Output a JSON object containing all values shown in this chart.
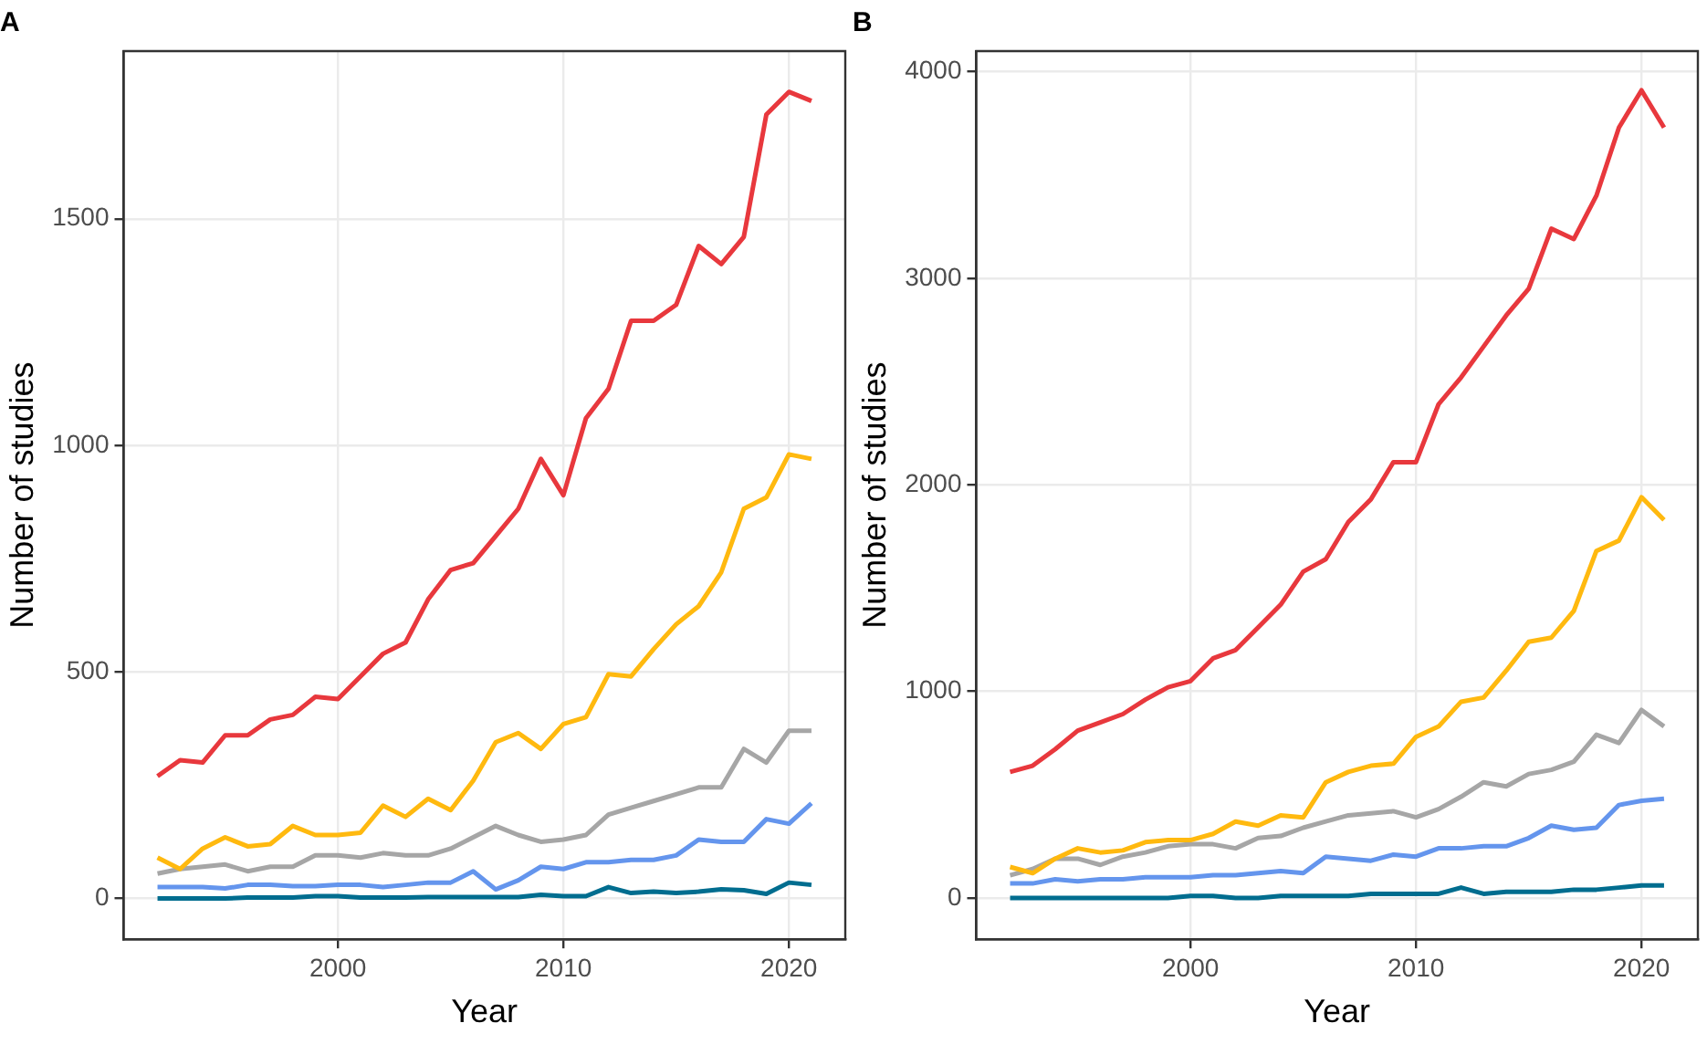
{
  "chart_data": [
    {
      "type": "line",
      "title": "A",
      "xlabel": "Year",
      "ylabel": "Number of studies",
      "x": [
        1992,
        1993,
        1994,
        1995,
        1996,
        1997,
        1998,
        1999,
        2000,
        2001,
        2002,
        2003,
        2004,
        2005,
        2006,
        2007,
        2008,
        2009,
        2010,
        2011,
        2012,
        2013,
        2014,
        2015,
        2016,
        2017,
        2018,
        2019,
        2020,
        2021
      ],
      "xlim": [
        1990.5,
        2022.5
      ],
      "xticks": [
        2000,
        2010,
        2020
      ],
      "ylim": [
        -90,
        1870
      ],
      "yticks": [
        0,
        500,
        1000,
        1500
      ],
      "grid": true,
      "legend": false,
      "marker": "none",
      "line_style": "solid",
      "series": [
        {
          "color": "#e8383d",
          "values": [
            270,
            305,
            300,
            360,
            360,
            395,
            405,
            445,
            440,
            490,
            540,
            565,
            660,
            725,
            740,
            800,
            860,
            970,
            890,
            1060,
            1125,
            1275,
            1275,
            1310,
            1440,
            1400,
            1460,
            1730,
            1780,
            1760
          ]
        },
        {
          "color": "#ffb90f",
          "values": [
            90,
            65,
            110,
            135,
            115,
            120,
            160,
            140,
            140,
            145,
            205,
            180,
            220,
            195,
            260,
            345,
            365,
            330,
            385,
            400,
            495,
            490,
            550,
            605,
            645,
            720,
            860,
            885,
            980,
            970
          ]
        },
        {
          "color": "#a6a6a6",
          "values": [
            55,
            65,
            70,
            75,
            60,
            70,
            70,
            95,
            95,
            90,
            100,
            95,
            95,
            110,
            135,
            160,
            140,
            125,
            130,
            140,
            185,
            200,
            215,
            230,
            245,
            245,
            330,
            300,
            370,
            370
          ]
        },
        {
          "color": "#6495ed",
          "values": [
            25,
            25,
            25,
            22,
            30,
            30,
            27,
            27,
            30,
            30,
            25,
            30,
            35,
            35,
            60,
            20,
            40,
            70,
            65,
            80,
            80,
            85,
            85,
            95,
            130,
            125,
            125,
            175,
            165,
            210
          ]
        },
        {
          "color": "#006d8f",
          "values": [
            0,
            0,
            0,
            0,
            2,
            2,
            2,
            5,
            5,
            2,
            2,
            2,
            3,
            3,
            3,
            3,
            3,
            8,
            5,
            5,
            25,
            12,
            15,
            12,
            15,
            20,
            18,
            10,
            35,
            30
          ]
        }
      ]
    },
    {
      "type": "line",
      "title": "B",
      "xlabel": "Year",
      "ylabel": "Number of studies",
      "x": [
        1992,
        1993,
        1994,
        1995,
        1996,
        1997,
        1998,
        1999,
        2000,
        2001,
        2002,
        2003,
        2004,
        2005,
        2006,
        2007,
        2008,
        2009,
        2010,
        2011,
        2012,
        2013,
        2014,
        2015,
        2016,
        2017,
        2018,
        2019,
        2020,
        2021
      ],
      "xlim": [
        1990.5,
        2022.5
      ],
      "xticks": [
        2000,
        2010,
        2020
      ],
      "ylim": [
        -200,
        4100
      ],
      "yticks": [
        0,
        1000,
        2000,
        3000,
        4000
      ],
      "grid": true,
      "legend": false,
      "marker": "none",
      "line_style": "solid",
      "series": [
        {
          "color": "#e8383d",
          "values": [
            610,
            640,
            720,
            810,
            850,
            890,
            960,
            1020,
            1050,
            1160,
            1200,
            1310,
            1420,
            1580,
            1640,
            1820,
            1930,
            2110,
            2110,
            2390,
            2520,
            2670,
            2820,
            2950,
            3240,
            3190,
            3400,
            3730,
            3910,
            3730
          ]
        },
        {
          "color": "#ffb90f",
          "values": [
            150,
            120,
            190,
            240,
            220,
            230,
            270,
            280,
            280,
            310,
            370,
            350,
            400,
            390,
            560,
            610,
            640,
            650,
            780,
            830,
            950,
            970,
            1100,
            1240,
            1260,
            1390,
            1680,
            1730,
            1940,
            1830
          ]
        },
        {
          "color": "#a6a6a6",
          "values": [
            110,
            140,
            190,
            190,
            160,
            200,
            220,
            250,
            260,
            260,
            240,
            290,
            300,
            340,
            370,
            400,
            410,
            420,
            390,
            430,
            490,
            560,
            540,
            600,
            620,
            660,
            790,
            750,
            910,
            830
          ]
        },
        {
          "color": "#6495ed",
          "values": [
            70,
            70,
            90,
            80,
            90,
            90,
            100,
            100,
            100,
            110,
            110,
            120,
            130,
            120,
            200,
            190,
            180,
            210,
            200,
            240,
            240,
            250,
            250,
            290,
            350,
            330,
            340,
            450,
            470,
            480
          ]
        },
        {
          "color": "#006d8f",
          "values": [
            0,
            0,
            0,
            0,
            0,
            0,
            0,
            0,
            10,
            10,
            0,
            0,
            10,
            10,
            10,
            10,
            20,
            20,
            20,
            20,
            50,
            20,
            30,
            30,
            30,
            40,
            40,
            50,
            60,
            60
          ]
        }
      ]
    }
  ]
}
